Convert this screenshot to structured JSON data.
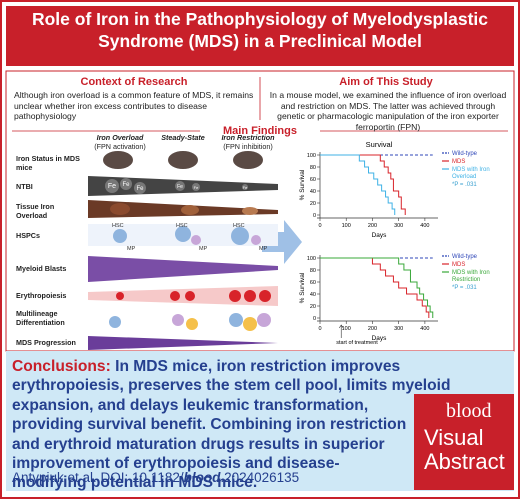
{
  "header": {
    "title": "Role of Iron in the Pathophysiology of Myelodysplastic Syndrome (MDS) in a Preclinical Model"
  },
  "context": {
    "heading": "Context of Research",
    "text": "Although iron overload is a common feature of MDS, it remains unclear whether iron excess contributes to disease pathophysiology"
  },
  "aim": {
    "heading": "Aim of This Study",
    "text": "In a mouse model, we examined the influence of iron overload and restriction on MDS. The latter was achieved through genetic or pharmacologic manipulation of the iron exporter ferroportin (FPN)"
  },
  "findings": {
    "heading": "Main Findings",
    "columns": [
      {
        "title": "Iron Overload",
        "subtitle": "(FPN activation)"
      },
      {
        "title": "Steady-State"
      },
      {
        "title": "Iron Restriction",
        "subtitle": "(FPN inhibition)"
      }
    ],
    "rows": [
      "Iron Status in MDS mice",
      "NTBI",
      "Tissue Iron Overload",
      "HSPCs",
      "Myeloid Blasts",
      "Erythropoiesis",
      "Multilineage Differentiation",
      "MDS Progression"
    ],
    "hsc": "HSC",
    "mp": "MP",
    "fe": "Fe"
  },
  "charts": [
    {
      "type": "line",
      "title": "Survival",
      "x_label": "Days",
      "y_label": "% Survival",
      "xlim": [
        0,
        450
      ],
      "ylim": [
        0,
        100
      ],
      "xticks": [
        0,
        100,
        200,
        300,
        400
      ],
      "yticks": [
        0,
        20,
        40,
        60,
        80,
        100
      ],
      "annotation": "*P = .031",
      "series": [
        {
          "name": "Wild-type",
          "color": "#2f47b8",
          "dashed": true,
          "x": [
            0,
            430
          ],
          "values": [
            100,
            100
          ]
        },
        {
          "name": "MDS",
          "color": "#d8232a",
          "x": [
            0,
            230,
            230,
            245,
            245,
            260,
            260,
            270,
            270,
            280,
            280,
            300,
            300,
            310,
            310,
            325,
            325
          ],
          "values": [
            100,
            100,
            90,
            90,
            80,
            80,
            70,
            70,
            60,
            60,
            40,
            40,
            30,
            30,
            10,
            10,
            0
          ]
        },
        {
          "name": "MDS with Iron Overload",
          "color": "#3fb2e6",
          "x": [
            0,
            150,
            150,
            170,
            170,
            185,
            185,
            205,
            205,
            220,
            220,
            235,
            235,
            250,
            250,
            260,
            260,
            275,
            275,
            285,
            285
          ],
          "values": [
            100,
            100,
            90,
            90,
            80,
            80,
            70,
            70,
            60,
            60,
            50,
            50,
            40,
            40,
            30,
            30,
            20,
            20,
            10,
            10,
            0
          ]
        }
      ]
    },
    {
      "type": "line",
      "x_label": "Days",
      "y_label": "% Survival",
      "note": "start of treatment",
      "xlim": [
        0,
        450
      ],
      "ylim": [
        0,
        100
      ],
      "xticks": [
        0,
        100,
        200,
        300,
        400
      ],
      "yticks": [
        0,
        20,
        40,
        60,
        80,
        100
      ],
      "annotation": "*P = .031",
      "series": [
        {
          "name": "Wild-type",
          "color": "#2f47b8",
          "dashed": true,
          "x": [
            0,
            430
          ],
          "values": [
            100,
            100
          ]
        },
        {
          "name": "MDS",
          "color": "#d8232a",
          "x": [
            0,
            200,
            200,
            230,
            230,
            250,
            250,
            280,
            280,
            300,
            300,
            330,
            330,
            370,
            370,
            390,
            390,
            405,
            405,
            415,
            415
          ],
          "values": [
            100,
            100,
            90,
            90,
            80,
            80,
            70,
            70,
            60,
            60,
            50,
            50,
            40,
            40,
            30,
            30,
            20,
            20,
            10,
            10,
            0
          ]
        },
        {
          "name": "MDS with Iron Restriction",
          "color": "#3aa83a",
          "x": [
            0,
            300,
            300,
            320,
            320,
            345,
            345,
            370,
            370,
            380,
            380,
            395,
            395,
            410,
            410,
            420,
            420,
            430,
            430
          ],
          "values": [
            100,
            100,
            90,
            90,
            80,
            80,
            60,
            60,
            50,
            50,
            40,
            40,
            30,
            30,
            20,
            20,
            10,
            10,
            0
          ]
        }
      ]
    }
  ],
  "conclusions": {
    "label": "Conclusions:",
    "text": "In MDS mice, iron restriction improves erythropoiesis, preserves the stem cell pool, limits myeloid expansion, and delays leukemic transformation, providing survival benefit. Combining iron restriction and erythroid maturation drugs results in superior improvement of erythropoiesis and disease-modifying potential in MDS mice."
  },
  "citation": {
    "authors": "Antypiuk et al. DOI: 10.1182/",
    "journal": "blood",
    "suffix": ".2024026135"
  },
  "logo": {
    "brand": "blood",
    "line1": "Visual",
    "line2": "Abstract"
  }
}
